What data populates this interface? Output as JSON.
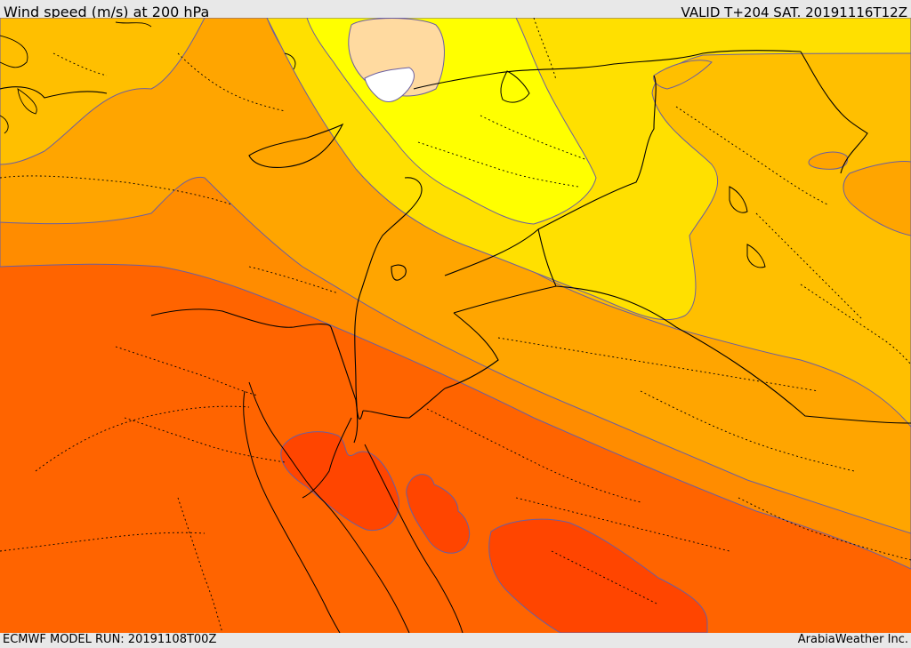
{
  "header": {
    "title": "Wind speed (m/s) at 200 hPa",
    "valid": "VALID T+204 SAT. 20191116T12Z"
  },
  "footer": {
    "model_run": "ECMWF MODEL RUN: 20191108T00Z",
    "credit": "ArabiaWeather Inc."
  },
  "colors": {
    "bg": "#e8e8e8",
    "c1": "#ff6400",
    "c2": "#ff8c00",
    "c3": "#ffa500",
    "c4": "#ffbf00",
    "c5": "#ffe000",
    "c6": "#ffff00",
    "peach": "#ffdaa0",
    "white": "#ffffff",
    "red": "#ff4500",
    "contour": "#6b5fa0"
  }
}
